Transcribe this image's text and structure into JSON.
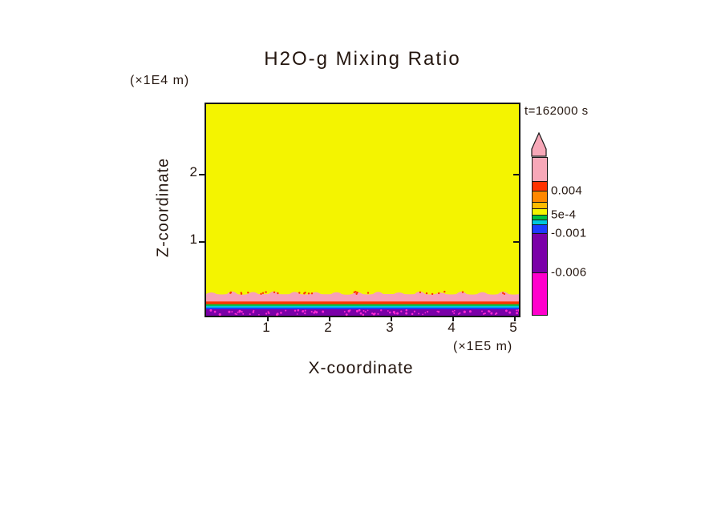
{
  "figure": {
    "title": "H2O-g Mixing Ratio",
    "time": "t=162000 s",
    "z_unit": "(×1E4 m)",
    "x_unit": "(×1E5 m)",
    "xlabel": "X-coordinate",
    "ylabel": "Z-coordinate",
    "x_ticks": [
      "1",
      "2",
      "3",
      "4",
      "5"
    ],
    "z_ticks": [
      "2",
      "1"
    ]
  },
  "colorbar": {
    "arrow_color": "#f7a8b8",
    "border_color": "#161616",
    "segments": [
      {
        "color": "#f7a8b8",
        "h": 30,
        "value_note": "> 0.004 (high extreme, pink)"
      },
      {
        "color": "#ff3300",
        "h": 12,
        "value_note": "just above 0.004"
      },
      {
        "color": "#ff8800",
        "h": 14,
        "value_note": "below 0.004"
      },
      {
        "color": "#ffbb00",
        "h": 8,
        "value_note": "approaching 5e-4"
      },
      {
        "color": "#f4f400",
        "h": 8,
        "value_note": "around 5e-4"
      },
      {
        "color": "#00c040",
        "h": 6,
        "value_note": "between 5e-4 and -0.001"
      },
      {
        "color": "#00c8dc",
        "h": 6,
        "value_note": "near -0.001"
      },
      {
        "color": "#1e3cff",
        "h": 11,
        "value_note": "just above -0.001"
      },
      {
        "color": "#7a00a8",
        "h": 49,
        "value_note": "-0.001 to -0.006"
      },
      {
        "color": "#ff00cc",
        "h": 52,
        "value_note": "< -0.006 (low extreme, magenta)"
      }
    ],
    "labels": [
      {
        "text": "0.004"
      },
      {
        "text": "5e-4"
      },
      {
        "text": "-0.001"
      },
      {
        "text": "-0.006"
      }
    ]
  },
  "chart_data": {
    "type": "heatmap",
    "title": "H2O-g Mixing Ratio",
    "time_annotation": "t=162000 s",
    "xlabel": "X-coordinate",
    "ylabel": "Z-coordinate",
    "x_unit": "(×1E5 m)",
    "z_unit": "(×1E4 m)",
    "x_range": [
      0,
      5.1
    ],
    "z_range": [
      -0.1,
      3.05
    ],
    "x_ticks": [
      1,
      2,
      3,
      4,
      5
    ],
    "z_ticks": [
      1,
      2
    ],
    "colorbar_tick_labels": [
      "0.004",
      "5e-4",
      "-0.001",
      "-0.006"
    ],
    "field_summary": "Domain is almost entirely one uniform yellow bin (~5e-4). A shallow stratified surface layer sits at the bottom: a pink high-value band (>0.004) with a wavy scalloped top near z≈0.25×1E4 m and red specks on its crests, thin orange-red, green, cyan and blue transition stripes beneath it, and a purple ground layer (-0.006 to -0.001) peppered with magenta specks (<-0.006).",
    "layers": [
      {
        "name": "ground purple layer",
        "color": "#7a00a8",
        "z_top": 0.0,
        "value_note": "-0.006 to -0.001",
        "speckles": {
          "color": "#ff2ad4",
          "count": 90,
          "value_note": "< -0.006"
        }
      },
      {
        "name": "blue stripe",
        "color": "#1e3cff",
        "z_top": 0.025,
        "value_note": "near -0.001"
      },
      {
        "name": "cyan stripe",
        "color": "#00c8dc",
        "z_top": 0.05,
        "value_note": "near -0.001"
      },
      {
        "name": "green stripe",
        "color": "#00c040",
        "z_top": 0.075,
        "value_note": "between -0.001 and 5e-4"
      },
      {
        "name": "orange-red stripe",
        "color": "#ff3300",
        "z_top": 0.115,
        "value_note": "near 0.004"
      },
      {
        "name": "pink surface band",
        "color": "#f7a0b8",
        "z_top": 0.25,
        "wavy_top": true,
        "value_note": "> 0.004",
        "crest_dots": {
          "color": "#ff3300",
          "count": 28
        }
      },
      {
        "name": "yellow interior",
        "color": "#f4f400",
        "z_top": 3.1,
        "value_note": "~5e-4 (uniform bulk)"
      }
    ]
  }
}
